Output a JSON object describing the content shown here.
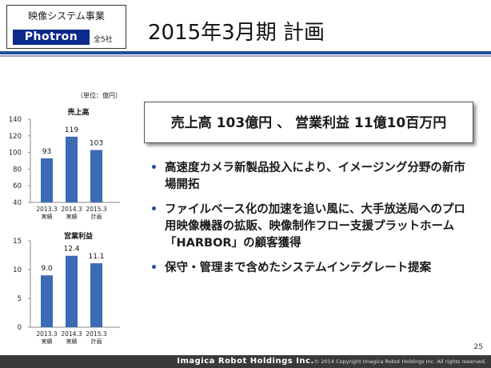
{
  "header": {
    "segment_label": "映像システム事業",
    "brand_logo": "Photron",
    "scope": "全5社",
    "title": "2015年3月期 計画"
  },
  "summary": "売上高 103億円 、 営業利益 11億10百万円",
  "bullets": [
    "高速度カメラ新製品投入により、イメージング分野の新市場開拓",
    "ファイルベース化の加速を追い風に、大手放送局へのプロ用映像機器の拡販、映像制作フロー支援プラットホーム「HARBOR」の顧客獲得",
    "保守・管理まで含めたシステムインテグレート提案"
  ],
  "chart_data": [
    {
      "type": "bar",
      "title": "売上高",
      "unit_note": "（単位：億円）",
      "categories": [
        [
          "2013.3",
          "実績"
        ],
        [
          "2014.3",
          "実績"
        ],
        [
          "2015.3",
          "計画"
        ]
      ],
      "values": [
        93,
        119,
        103
      ],
      "value_labels": [
        "93",
        "119",
        "103"
      ],
      "ylim": [
        40,
        140
      ],
      "yticks": [
        40,
        60,
        80,
        100,
        120,
        140
      ],
      "bar_color": "#3b6bb4",
      "grid": false
    },
    {
      "type": "bar",
      "title": "営業利益",
      "categories": [
        [
          "2013.3",
          "実績"
        ],
        [
          "2014.3",
          "実績"
        ],
        [
          "2015.3",
          "計画"
        ]
      ],
      "values": [
        9.0,
        12.4,
        11.1
      ],
      "value_labels": [
        "9.0",
        "12.4",
        "11.1"
      ],
      "ylim": [
        0,
        15
      ],
      "yticks": [
        0,
        5,
        10,
        15
      ],
      "bar_color": "#3b6bb4",
      "grid": false
    }
  ],
  "footer": {
    "company": "Imagica Robot Holdings Inc.",
    "copyright": "© 2014 Copyright Imagica Robot Holdings Inc. All rights reserved.",
    "page": "25"
  }
}
